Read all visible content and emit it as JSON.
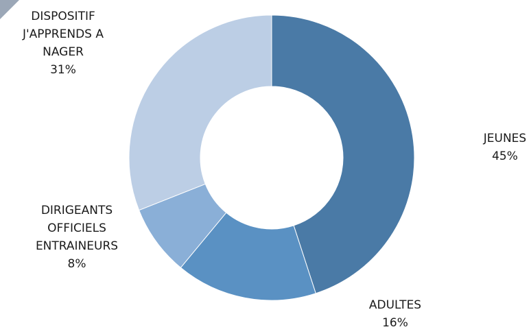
{
  "chart_data": {
    "type": "pie",
    "donut": true,
    "title": "",
    "slices": [
      {
        "label_lines": [
          "JEUNES"
        ],
        "percent_label": "45%",
        "value": 45,
        "color": "#4a7aa6"
      },
      {
        "label_lines": [
          "ADULTES"
        ],
        "percent_label": "16%",
        "value": 16,
        "color": "#5a91c3"
      },
      {
        "label_lines": [
          "DIRIGEANTS",
          "OFFICIELS",
          "ENTRAINEURS"
        ],
        "percent_label": "8%",
        "value": 8,
        "color": "#8aafd7"
      },
      {
        "label_lines": [
          "DISPOSITIF",
          "J'APPRENDS A",
          "NAGER"
        ],
        "percent_label": "31%",
        "value": 31,
        "color": "#bccee5"
      }
    ],
    "start": "12 o'clock",
    "direction": "clockwise",
    "legend": "none"
  }
}
